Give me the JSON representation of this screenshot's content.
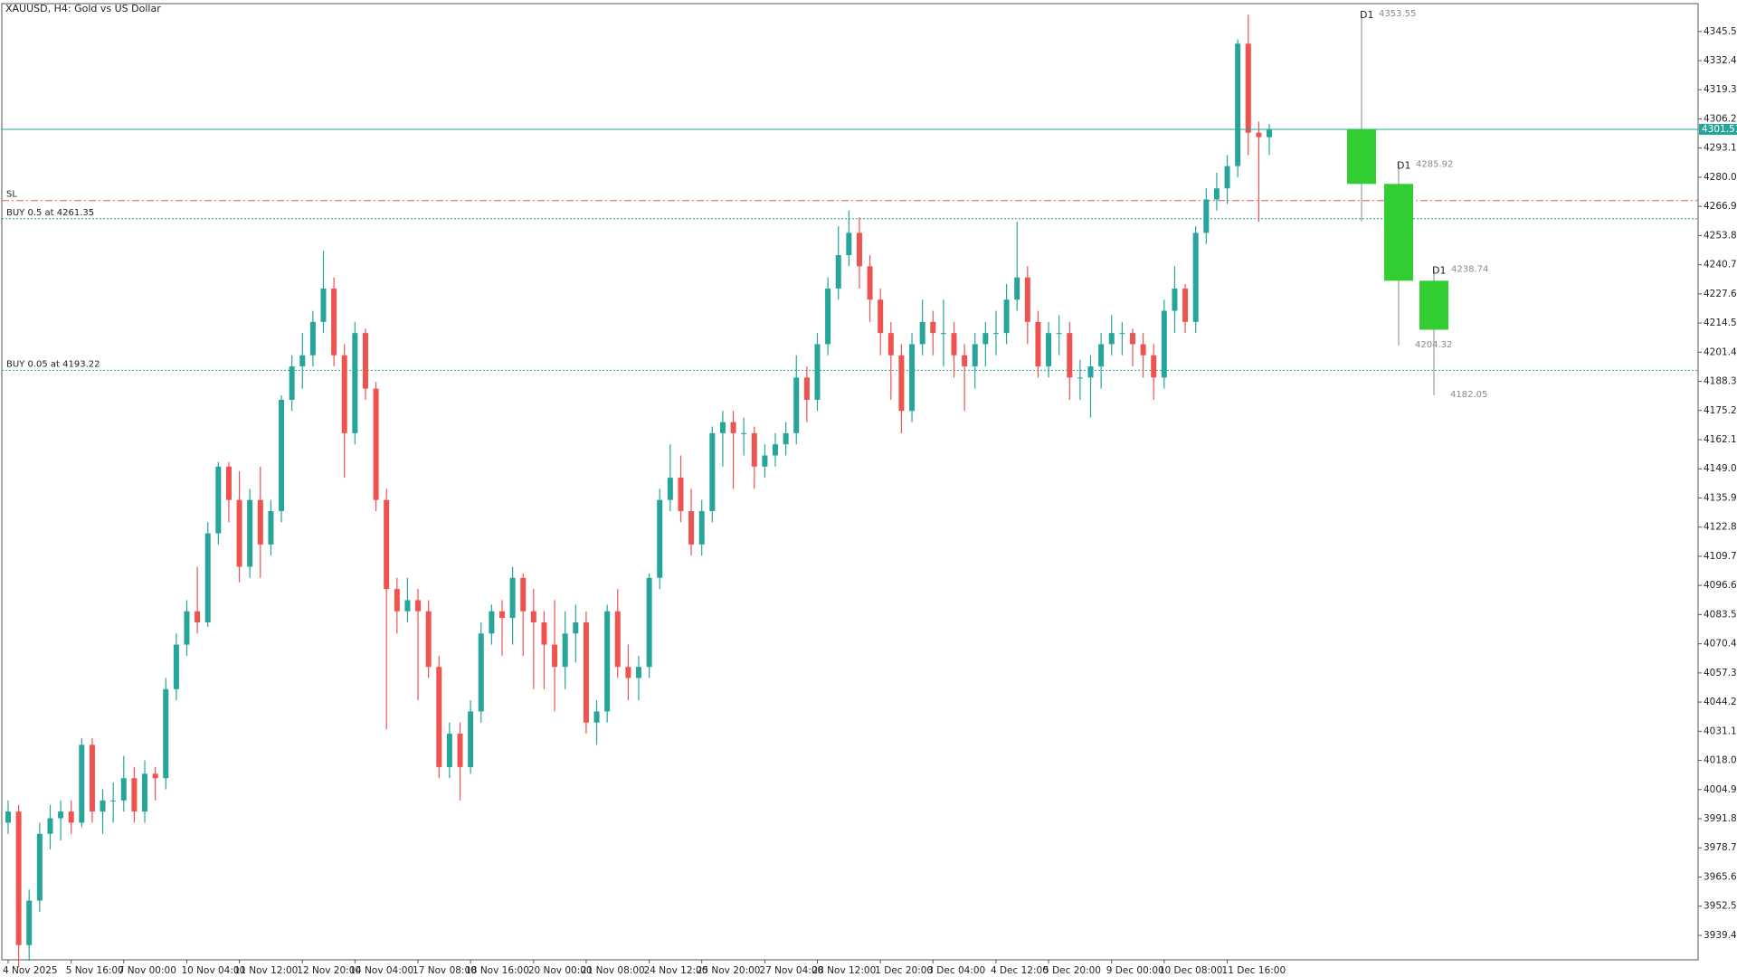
{
  "chart_data": {
    "type": "candlestick",
    "title": "XAUUSD, H4:  Gold vs US Dollar",
    "up_color": "#26a69a",
    "down_color": "#ef5350",
    "categories": [
      "4 Nov 2025",
      null,
      null,
      null,
      null,
      null,
      "5 Nov 16:00",
      null,
      null,
      null,
      null,
      "7 Nov 00:00",
      null,
      null,
      null,
      null,
      null,
      "10 Nov 04:00",
      null,
      null,
      null,
      null,
      "11 Nov 12:00",
      null,
      null,
      null,
      null,
      null,
      "12 Nov 20:00",
      null,
      null,
      null,
      null,
      "14 Nov 04:00",
      null,
      null,
      null,
      null,
      null,
      "17 Nov 08:00",
      null,
      null,
      null,
      null,
      "18 Nov 16:00",
      null,
      null,
      null,
      null,
      null,
      "20 Nov 00:00",
      null,
      null,
      null,
      null,
      "21 Nov 08:00",
      null,
      null,
      null,
      null,
      null,
      "24 Nov 12:00",
      null,
      null,
      null,
      null,
      "25 Nov 20:00",
      null,
      null,
      null,
      null,
      null,
      "27 Nov 04:00",
      null,
      null,
      null,
      null,
      "28 Nov 12:00",
      null,
      null,
      null,
      null,
      null,
      "1 Dec 20:00",
      null,
      null,
      null,
      null,
      "3 Dec 04:00",
      null,
      null,
      null,
      null,
      null,
      "4 Dec 12:00",
      null,
      null,
      null,
      null,
      "5 Dec 20:00",
      null,
      null,
      null,
      null,
      null,
      "9 Dec 00:00",
      null,
      null,
      null,
      null,
      "10 Dec 08:00",
      null,
      null,
      null,
      null,
      null,
      "11 Dec 16:00",
      null,
      null,
      null,
      null
    ],
    "open": [
      3990,
      3995,
      3935,
      3955,
      3985,
      3992,
      3995,
      3990,
      4025,
      3995,
      4000,
      4000,
      4010,
      3995,
      4012,
      4010,
      4050,
      4070,
      4085,
      4080,
      4120,
      4150,
      4135,
      4105,
      4135,
      4115,
      4130,
      4180,
      4195,
      4200,
      4215,
      4230,
      4200,
      4165,
      4210,
      4185,
      4135,
      4095,
      4085,
      4090,
      4085,
      4060,
      4015,
      4030,
      4015,
      4040,
      4075,
      4085,
      4082,
      4100,
      4085,
      4080,
      4070,
      4060,
      4075,
      4080,
      4035,
      4040,
      4085,
      4060,
      4055,
      4060,
      4100,
      4135,
      4145,
      4130,
      4115,
      4130,
      4165,
      4170,
      4165,
      4165,
      4150,
      4155,
      4160,
      4165,
      4190,
      4180,
      4205,
      4230,
      4245,
      4255,
      4240,
      4225,
      4210,
      4200,
      4175,
      4205,
      4215,
      4210,
      4210,
      4200,
      4195,
      4205,
      4210,
      4210,
      4225,
      4235,
      4215,
      4195,
      4210,
      4210,
      4190,
      4190,
      4195,
      4205,
      4210,
      4210,
      4205,
      4200,
      4190,
      4220,
      4230,
      4215,
      4255,
      4270,
      4275,
      4285,
      4340,
      4300,
      4298
    ],
    "high": [
      4000,
      3998,
      3960,
      3990,
      3998,
      4000,
      4000,
      4028,
      4028,
      4005,
      4008,
      4020,
      4015,
      4018,
      4015,
      4055,
      4075,
      4090,
      4105,
      4125,
      4152,
      4152,
      4148,
      4140,
      4150,
      4135,
      4182,
      4200,
      4210,
      4220,
      4247,
      4235,
      4205,
      4215,
      4212,
      4188,
      4140,
      4100,
      4100,
      4095,
      4090,
      4065,
      4035,
      4035,
      4045,
      4080,
      4088,
      4090,
      4105,
      4102,
      4095,
      4085,
      4090,
      4085,
      4088,
      4085,
      4045,
      4088,
      4095,
      4070,
      4065,
      4102,
      4140,
      4160,
      4155,
      4140,
      4135,
      4168,
      4175,
      4175,
      4172,
      4168,
      4160,
      4165,
      4170,
      4200,
      4195,
      4210,
      4235,
      4258,
      4265,
      4262,
      4245,
      4230,
      4215,
      4205,
      4210,
      4225,
      4220,
      4225,
      4215,
      4205,
      4210,
      4215,
      4220,
      4232,
      4260,
      4240,
      4220,
      4215,
      4218,
      4215,
      4198,
      4200,
      4210,
      4218,
      4215,
      4212,
      4210,
      4205,
      4225,
      4240,
      4232,
      4258,
      4275,
      4282,
      4290,
      4342,
      4353,
      4305,
      4304
    ],
    "low": [
      3985,
      3925,
      3928,
      3950,
      3978,
      3982,
      3985,
      3988,
      3990,
      3985,
      3990,
      3995,
      3990,
      3990,
      4000,
      4005,
      4045,
      4065,
      4075,
      4078,
      4115,
      4125,
      4098,
      4100,
      4100,
      4110,
      4125,
      4175,
      4185,
      4195,
      4210,
      4195,
      4145,
      4160,
      4180,
      4130,
      4032,
      4075,
      4080,
      4045,
      4055,
      4010,
      4010,
      4000,
      4012,
      4035,
      4070,
      4065,
      4070,
      4065,
      4050,
      4050,
      4040,
      4050,
      4062,
      4030,
      4025,
      4035,
      4055,
      4045,
      4045,
      4055,
      4095,
      4130,
      4125,
      4110,
      4110,
      4125,
      4150,
      4140,
      4155,
      4140,
      4145,
      4150,
      4155,
      4160,
      4170,
      4175,
      4200,
      4225,
      4240,
      4230,
      4215,
      4200,
      4180,
      4165,
      4170,
      4200,
      4200,
      4195,
      4190,
      4175,
      4185,
      4195,
      4200,
      4205,
      4220,
      4205,
      4190,
      4190,
      4200,
      4180,
      4180,
      4172,
      4185,
      4200,
      4200,
      4195,
      4190,
      4180,
      4185,
      4210,
      4210,
      4210,
      4250,
      4265,
      4268,
      4280,
      4290,
      4260,
      4290
    ],
    "close": [
      3995,
      3935,
      3955,
      3985,
      3992,
      3995,
      3990,
      4025,
      3995,
      4000,
      4000,
      4010,
      3995,
      4012,
      4010,
      4050,
      4070,
      4085,
      4080,
      4120,
      4150,
      4135,
      4105,
      4135,
      4115,
      4130,
      4180,
      4195,
      4200,
      4215,
      4230,
      4200,
      4165,
      4210,
      4185,
      4135,
      4095,
      4085,
      4090,
      4085,
      4060,
      4015,
      4030,
      4015,
      4040,
      4075,
      4085,
      4082,
      4100,
      4085,
      4080,
      4070,
      4060,
      4075,
      4080,
      4035,
      4040,
      4085,
      4060,
      4055,
      4060,
      4100,
      4135,
      4145,
      4130,
      4115,
      4130,
      4165,
      4170,
      4165,
      4165,
      4150,
      4155,
      4160,
      4165,
      4190,
      4180,
      4205,
      4230,
      4245,
      4255,
      4240,
      4225,
      4210,
      4200,
      4175,
      4205,
      4215,
      4210,
      4210,
      4200,
      4195,
      4205,
      4210,
      4210,
      4225,
      4235,
      4215,
      4195,
      4210,
      4210,
      4190,
      4190,
      4195,
      4205,
      4210,
      4210,
      4205,
      4200,
      4190,
      4220,
      4230,
      4215,
      4255,
      4270,
      4275,
      4285,
      4340,
      4300,
      4298,
      4301.51
    ],
    "ylim": [
      3928.4,
      4358.0
    ],
    "yticks": [
      {
        "value": 4345.5,
        "label": "4345.50"
      },
      {
        "value": 4332.4,
        "label": "4332.40"
      },
      {
        "value": 4319.3,
        "label": "4319.30"
      },
      {
        "value": 4306.2,
        "label": "4306.20"
      },
      {
        "value": 4293.1,
        "label": "4293.10"
      },
      {
        "value": 4280,
        "label": "4280.00"
      },
      {
        "value": 4266.9,
        "label": "4266.90"
      },
      {
        "value": 4253.8,
        "label": "4253.80"
      },
      {
        "value": 4240.7,
        "label": "4240.70"
      },
      {
        "value": 4227.6,
        "label": "4227.60"
      },
      {
        "value": 4214.5,
        "label": "4214.50"
      },
      {
        "value": 4201.4,
        "label": "4201.40"
      },
      {
        "value": 4188.3,
        "label": "4188.30"
      },
      {
        "value": 4175.2,
        "label": "4175.20"
      },
      {
        "value": 4162.1,
        "label": "4162.10"
      },
      {
        "value": 4149,
        "label": "4149.00"
      },
      {
        "value": 4135.9,
        "label": "4135.90"
      },
      {
        "value": 4122.8,
        "label": "4122.80"
      },
      {
        "value": 4109.7,
        "label": "4109.70"
      },
      {
        "value": 4096.6,
        "label": "4096.60"
      },
      {
        "value": 4083.5,
        "label": "4083.50"
      },
      {
        "value": 4070.4,
        "label": "4070.40"
      },
      {
        "value": 4057.3,
        "label": "4057.30"
      },
      {
        "value": 4044.2,
        "label": "4044.20"
      },
      {
        "value": 4031.1,
        "label": "4031.10"
      },
      {
        "value": 4018,
        "label": "4018.00"
      },
      {
        "value": 4004.9,
        "label": "4004.90"
      },
      {
        "value": 3991.8,
        "label": "3991.80"
      },
      {
        "value": 3978.7,
        "label": "3978.70"
      },
      {
        "value": 3965.6,
        "label": "3965.60"
      },
      {
        "value": 3952.5,
        "label": "3952.50"
      },
      {
        "value": 3939.4,
        "label": "3939.40"
      }
    ],
    "current_price": {
      "value": 4301.51,
      "label": "4301.51",
      "color": "#26a69a"
    },
    "levels": [
      {
        "label": "SL",
        "value": 4269.5,
        "color": "#ef5350",
        "style": "dashdot"
      },
      {
        "label": "BUY 0.5 at 4261.35",
        "value": 4261.35,
        "color": "#26a69a",
        "style": "dotted"
      },
      {
        "label": "BUY 0.05 at 4193.22",
        "value": 4193.22,
        "color": "#26a69a",
        "style": "dotted"
      }
    ],
    "projection": {
      "label": "D1",
      "color": "#32cd32",
      "candles": [
        {
          "open": 4301.51,
          "high": 4353.55,
          "low": 4260,
          "close": 4277
        },
        {
          "open": 4277,
          "high": 4285.92,
          "low": 4204.32,
          "close": 4233.5
        },
        {
          "open": 4233.5,
          "high": 4238.74,
          "low": 4182.05,
          "close": 4211.5
        }
      ]
    }
  }
}
